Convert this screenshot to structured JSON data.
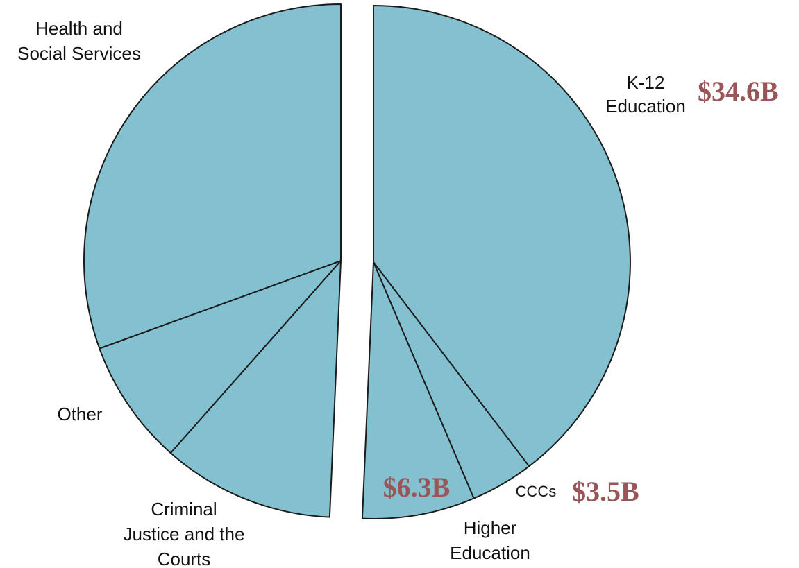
{
  "chart_data": {
    "type": "pie",
    "layout": "split",
    "slices": [
      {
        "label_lines": [
          "K-12",
          "Education"
        ],
        "value": 34.6,
        "amount_label": "$34.6B"
      },
      {
        "label_lines": [
          "CCCs"
        ],
        "value": 3.5,
        "amount_label": "$3.5B"
      },
      {
        "label_lines": [
          "Higher",
          "Education"
        ],
        "value": 6.3,
        "amount_label": "$6.3B"
      },
      {
        "label_lines": [
          "Criminal",
          "Justice and the",
          "Courts"
        ],
        "value": null
      },
      {
        "label_lines": [
          "Other"
        ],
        "value": null
      },
      {
        "label_lines": [
          "Health and",
          "Social Services"
        ],
        "value": null
      }
    ],
    "colors": {
      "slice_fill": "#83c1d1",
      "slice_stroke": "#1b1b1b",
      "amount_text": "#9a5558",
      "label_text": "#111111"
    }
  }
}
